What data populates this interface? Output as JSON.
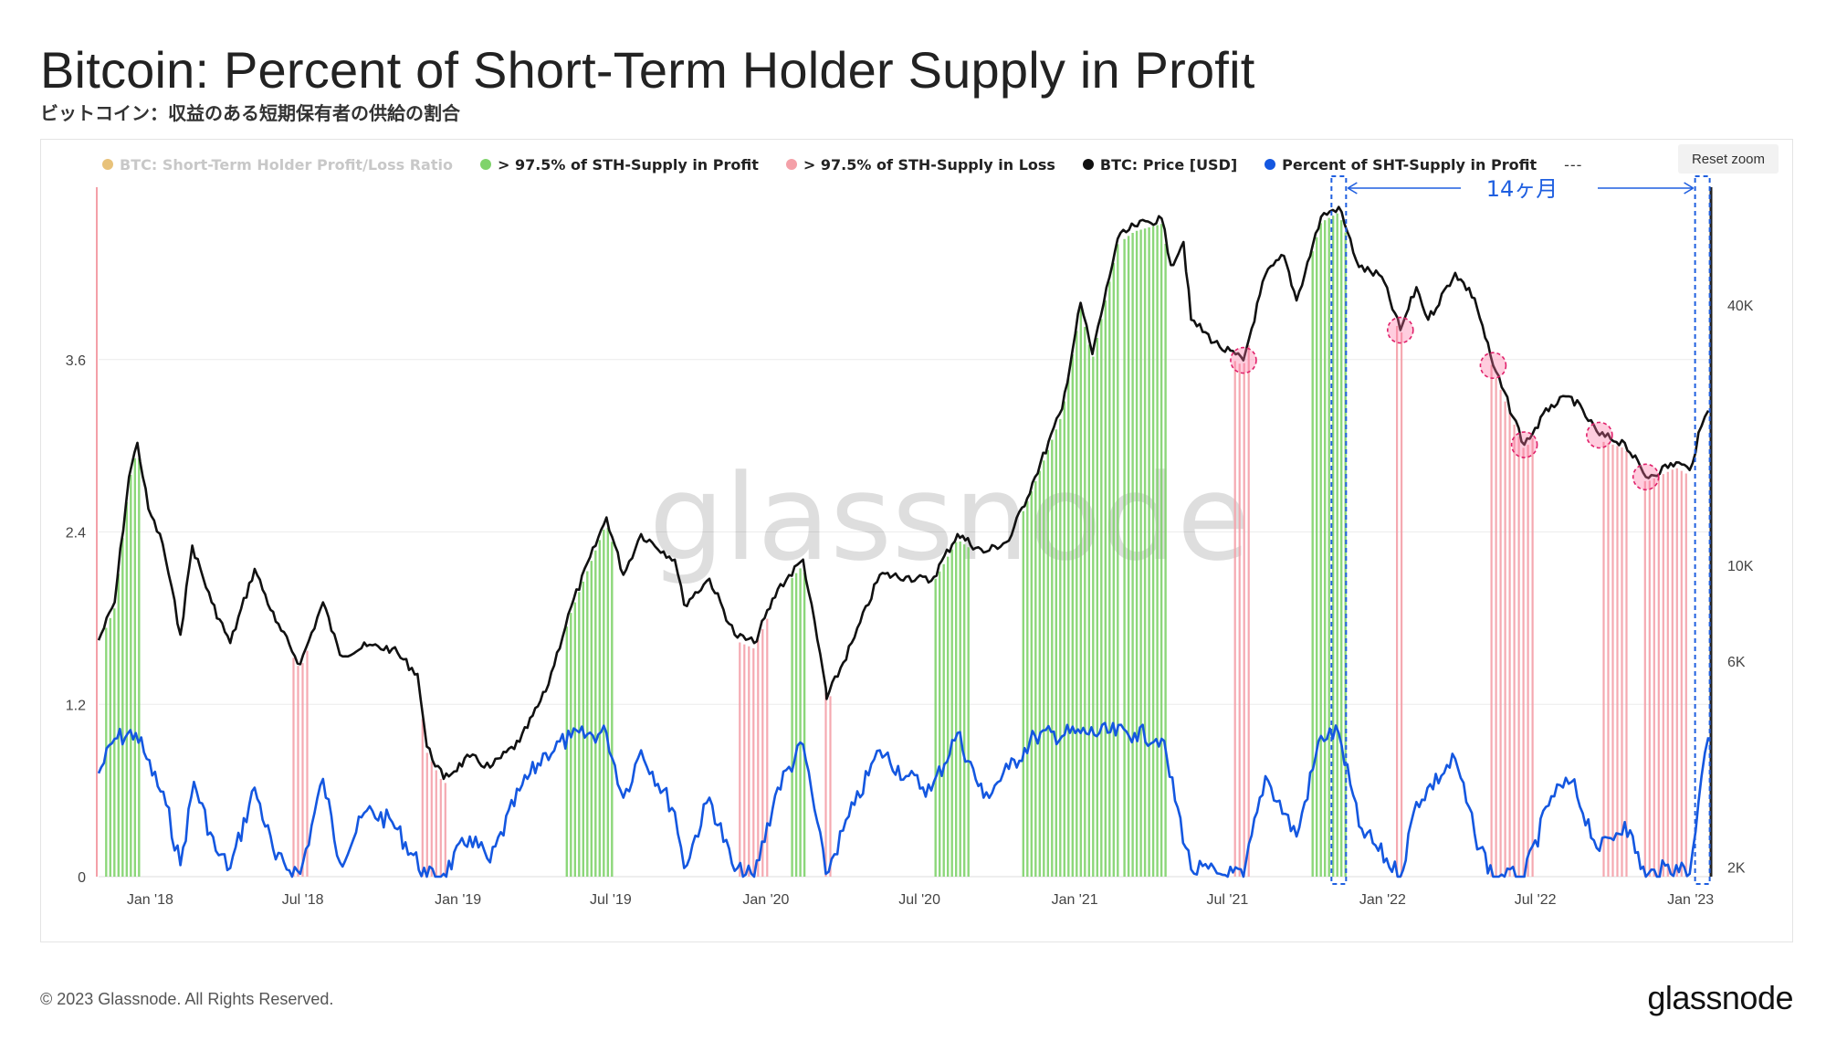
{
  "title": "Bitcoin: Percent of Short-Term Holder Supply in Profit",
  "subtitle": "ビットコイン：収益のある短期保有者の供給の割合",
  "reset_zoom_label": "Reset zoom",
  "watermark": "glassnode",
  "footer": "© 2023 Glassnode. All Rights Reserved.",
  "logo": "glassnode",
  "annotation": {
    "label": "14ヶ月",
    "color": "#1f5fe0"
  },
  "legend": [
    {
      "label": "BTC: Short-Term Holder Profit/Loss Ratio",
      "color": "#e8c27a",
      "faded": true
    },
    {
      "label": "> 97.5% of STH-Supply in Profit",
      "color": "#7fd36b",
      "faded": false
    },
    {
      "label": "> 97.5% of STH-Supply in Loss",
      "color": "#f4a0a8",
      "faded": false
    },
    {
      "label": "BTC: Price [USD]",
      "color": "#111111",
      "faded": false
    },
    {
      "label": "Percent of SHT-Supply in Profit",
      "color": "#1457e0",
      "faded": false
    },
    {
      "label": "---",
      "color": "",
      "faded": false
    }
  ],
  "chart_data": {
    "type": "line",
    "x_ticks": [
      "Jan '18",
      "Jul '18",
      "Jan '19",
      "Jul '19",
      "Jan '20",
      "Jul '20",
      "Jan '21",
      "Jul '21",
      "Jan '22",
      "Jul '22",
      "Jan '23"
    ],
    "y_left_ticks": [
      "0",
      "1.2",
      "2.4",
      "3.6"
    ],
    "y_left_range": [
      0,
      4.8
    ],
    "y_right_ticks": [
      "2K",
      "6K",
      "10K",
      "40K"
    ],
    "y_right_scale": "log",
    "y_right_range": [
      1900,
      75000
    ],
    "series": [
      {
        "name": "BTC: Price [USD]",
        "color": "#111111",
        "points": [
          [
            "2017-11-01",
            6700
          ],
          [
            "2017-11-20",
            8200
          ],
          [
            "2017-12-07",
            16000
          ],
          [
            "2017-12-17",
            19200
          ],
          [
            "2017-12-30",
            13500
          ],
          [
            "2018-01-16",
            11200
          ],
          [
            "2018-02-06",
            6900
          ],
          [
            "2018-02-20",
            11100
          ],
          [
            "2018-03-15",
            8200
          ],
          [
            "2018-04-06",
            6600
          ],
          [
            "2018-05-05",
            9800
          ],
          [
            "2018-05-30",
            7400
          ],
          [
            "2018-06-28",
            5900
          ],
          [
            "2018-07-25",
            8200
          ],
          [
            "2018-08-14",
            6200
          ],
          [
            "2018-09-15",
            6500
          ],
          [
            "2018-10-15",
            6400
          ],
          [
            "2018-11-14",
            5600
          ],
          [
            "2018-11-25",
            3800
          ],
          [
            "2018-12-15",
            3200
          ],
          [
            "2019-01-15",
            3600
          ],
          [
            "2019-02-08",
            3400
          ],
          [
            "2019-03-15",
            3900
          ],
          [
            "2019-04-15",
            5100
          ],
          [
            "2019-05-15",
            8000
          ],
          [
            "2019-06-26",
            12900
          ],
          [
            "2019-07-16",
            9500
          ],
          [
            "2019-08-06",
            11800
          ],
          [
            "2019-09-15",
            10300
          ],
          [
            "2019-09-26",
            8100
          ],
          [
            "2019-10-26",
            9300
          ],
          [
            "2019-11-25",
            6900
          ],
          [
            "2019-12-18",
            6600
          ],
          [
            "2020-01-15",
            8800
          ],
          [
            "2020-02-14",
            10300
          ],
          [
            "2020-03-12",
            5200
          ],
          [
            "2020-03-13",
            4900
          ],
          [
            "2020-04-15",
            6800
          ],
          [
            "2020-05-15",
            9500
          ],
          [
            "2020-06-15",
            9400
          ],
          [
            "2020-07-15",
            9200
          ],
          [
            "2020-08-15",
            11800
          ],
          [
            "2020-09-15",
            10700
          ],
          [
            "2020-10-15",
            11400
          ],
          [
            "2020-11-15",
            16000
          ],
          [
            "2020-12-17",
            23000
          ],
          [
            "2021-01-08",
            40500
          ],
          [
            "2021-01-22",
            30800
          ],
          [
            "2021-02-21",
            57000
          ],
          [
            "2021-03-13",
            61000
          ],
          [
            "2021-04-14",
            63500
          ],
          [
            "2021-04-25",
            49500
          ],
          [
            "2021-05-10",
            56000
          ],
          [
            "2021-05-19",
            37000
          ],
          [
            "2021-06-22",
            32000
          ],
          [
            "2021-07-20",
            29800
          ],
          [
            "2021-08-15",
            47000
          ],
          [
            "2021-09-06",
            52000
          ],
          [
            "2021-09-21",
            41000
          ],
          [
            "2021-10-20",
            64000
          ],
          [
            "2021-11-10",
            67500
          ],
          [
            "2021-12-04",
            49000
          ],
          [
            "2021-12-31",
            46500
          ],
          [
            "2022-01-22",
            35000
          ],
          [
            "2022-02-10",
            44000
          ],
          [
            "2022-02-24",
            37000
          ],
          [
            "2022-03-28",
            47500
          ],
          [
            "2022-04-20",
            41500
          ],
          [
            "2022-05-12",
            29000
          ],
          [
            "2022-06-18",
            19000
          ],
          [
            "2022-07-20",
            23500
          ],
          [
            "2022-08-13",
            24500
          ],
          [
            "2022-09-15",
            20000
          ],
          [
            "2022-10-15",
            19200
          ],
          [
            "2022-11-09",
            16000
          ],
          [
            "2022-12-15",
            17300
          ],
          [
            "2022-12-31",
            16600
          ],
          [
            "2023-01-14",
            21000
          ],
          [
            "2023-01-22",
            22800
          ]
        ]
      },
      {
        "name": "Percent of SHT-Supply in Profit",
        "color": "#1457e0",
        "points": [
          [
            "2017-11-01",
            0.72
          ],
          [
            "2017-11-20",
            0.96
          ],
          [
            "2017-12-15",
            1.0
          ],
          [
            "2017-12-28",
            0.82
          ],
          [
            "2018-01-20",
            0.5
          ],
          [
            "2018-02-06",
            0.08
          ],
          [
            "2018-02-22",
            0.66
          ],
          [
            "2018-03-20",
            0.18
          ],
          [
            "2018-04-06",
            0.06
          ],
          [
            "2018-05-05",
            0.62
          ],
          [
            "2018-05-30",
            0.12
          ],
          [
            "2018-06-28",
            0.02
          ],
          [
            "2018-07-25",
            0.68
          ],
          [
            "2018-08-14",
            0.1
          ],
          [
            "2018-09-15",
            0.46
          ],
          [
            "2018-10-15",
            0.38
          ],
          [
            "2018-11-25",
            0.0
          ],
          [
            "2018-12-15",
            0.02
          ],
          [
            "2019-01-15",
            0.28
          ],
          [
            "2019-02-08",
            0.1
          ],
          [
            "2019-03-15",
            0.6
          ],
          [
            "2019-04-15",
            0.86
          ],
          [
            "2019-05-15",
            0.97
          ],
          [
            "2019-06-26",
            1.0
          ],
          [
            "2019-07-16",
            0.55
          ],
          [
            "2019-08-06",
            0.88
          ],
          [
            "2019-09-15",
            0.45
          ],
          [
            "2019-09-26",
            0.06
          ],
          [
            "2019-10-26",
            0.55
          ],
          [
            "2019-11-25",
            0.04
          ],
          [
            "2019-12-18",
            0.0
          ],
          [
            "2020-01-15",
            0.62
          ],
          [
            "2020-02-14",
            0.92
          ],
          [
            "2020-03-12",
            0.02
          ],
          [
            "2020-04-15",
            0.5
          ],
          [
            "2020-05-15",
            0.88
          ],
          [
            "2020-06-15",
            0.7
          ],
          [
            "2020-07-15",
            0.6
          ],
          [
            "2020-08-15",
            1.0
          ],
          [
            "2020-09-15",
            0.55
          ],
          [
            "2020-10-15",
            0.75
          ],
          [
            "2020-11-15",
            0.98
          ],
          [
            "2021-01-08",
            1.0
          ],
          [
            "2021-03-13",
            1.0
          ],
          [
            "2021-04-14",
            0.96
          ],
          [
            "2021-05-19",
            0.05
          ],
          [
            "2021-06-22",
            0.02
          ],
          [
            "2021-07-20",
            0.0
          ],
          [
            "2021-08-15",
            0.7
          ],
          [
            "2021-09-21",
            0.28
          ],
          [
            "2021-10-20",
            0.98
          ],
          [
            "2021-11-10",
            1.0
          ],
          [
            "2021-12-04",
            0.35
          ],
          [
            "2022-01-22",
            0.0
          ],
          [
            "2022-02-10",
            0.52
          ],
          [
            "2022-03-28",
            0.82
          ],
          [
            "2022-04-20",
            0.3
          ],
          [
            "2022-05-12",
            0.0
          ],
          [
            "2022-06-18",
            0.0
          ],
          [
            "2022-07-20",
            0.56
          ],
          [
            "2022-08-13",
            0.66
          ],
          [
            "2022-09-15",
            0.18
          ],
          [
            "2022-10-15",
            0.38
          ],
          [
            "2022-11-09",
            0.0
          ],
          [
            "2022-12-15",
            0.08
          ],
          [
            "2022-12-31",
            0.02
          ],
          [
            "2023-01-14",
            0.7
          ],
          [
            "2023-01-22",
            0.97
          ]
        ]
      },
      {
        "name": "> 97.5% of STH-Supply in Profit",
        "color": "#7fd36b",
        "periods": [
          [
            "2017-11-10",
            "2017-12-20"
          ],
          [
            "2019-05-10",
            "2019-07-05"
          ],
          [
            "2020-02-01",
            "2020-02-18"
          ],
          [
            "2020-07-20",
            "2020-08-28"
          ],
          [
            "2020-11-01",
            "2021-02-25"
          ],
          [
            "2021-03-01",
            "2021-04-20"
          ],
          [
            "2021-10-10",
            "2021-11-20"
          ]
        ]
      },
      {
        "name": "> 97.5% of STH-Supply in Loss",
        "color": "#f4a0a8",
        "periods": [
          [
            "2018-06-20",
            "2018-07-08"
          ],
          [
            "2018-11-20",
            "2018-12-20"
          ],
          [
            "2019-12-01",
            "2020-01-05"
          ],
          [
            "2020-03-12",
            "2020-03-20"
          ],
          [
            "2021-07-10",
            "2021-07-28"
          ],
          [
            "2022-01-18",
            "2022-01-28"
          ],
          [
            "2022-05-10",
            "2022-07-02"
          ],
          [
            "2022-09-20",
            "2022-10-22"
          ],
          [
            "2022-11-08",
            "2022-12-31"
          ]
        ]
      }
    ],
    "highlight_circles": [
      "2021-07-20",
      "2022-01-22",
      "2022-05-12",
      "2022-06-18",
      "2022-09-15",
      "2022-11-09"
    ],
    "bracket": {
      "start": "2021-11-10",
      "end": "2023-01-15",
      "label": "14ヶ月"
    }
  }
}
